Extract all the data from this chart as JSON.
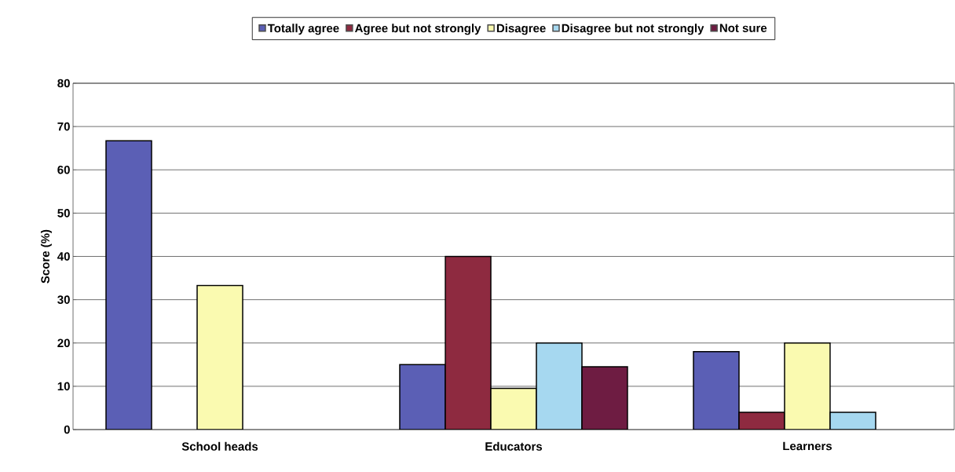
{
  "chart_data": {
    "type": "bar",
    "ylabel": "Score (%)",
    "categories": [
      "School heads",
      "Educators",
      "Learners"
    ],
    "series": [
      {
        "name": "Totally agree",
        "color": "#5b5fb5",
        "values": [
          66.7,
          15,
          18
        ]
      },
      {
        "name": "Agree but not strongly",
        "color": "#8e2a40",
        "values": [
          null,
          40,
          4
        ]
      },
      {
        "name": "Disagree",
        "color": "#fafab0",
        "values": [
          33.3,
          9.5,
          20
        ]
      },
      {
        "name": "Disagree but not strongly",
        "color": "#a6d8f0",
        "values": [
          null,
          20,
          4
        ]
      },
      {
        "name": "Not sure",
        "color": "#6e1c42",
        "values": [
          null,
          14.5,
          null
        ]
      }
    ],
    "ylim": [
      0,
      80
    ],
    "yticks": [
      0,
      10,
      20,
      30,
      40,
      50,
      60,
      70,
      80
    ],
    "grid": "y",
    "legend": "top"
  }
}
